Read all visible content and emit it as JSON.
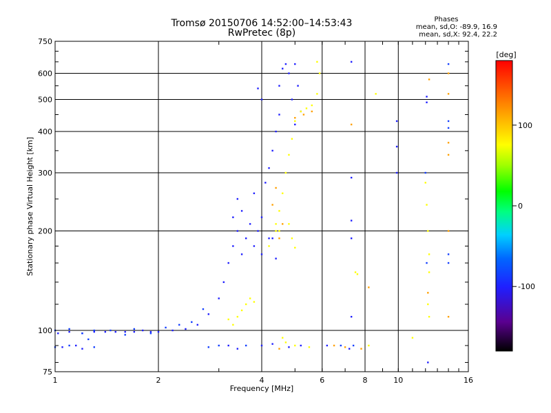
{
  "chart_data": {
    "type": "scatter",
    "title": "Tromsø 20150706 14:52:00–14:53:43",
    "subtitle": "RwPretec (8p)",
    "xlabel": "Frequency [MHz]",
    "ylabel": "Stationary phase Virtual Height [km]",
    "x_scale": "log",
    "y_scale": "log",
    "xlim": [
      1,
      16
    ],
    "ylim": [
      75,
      750
    ],
    "x_ticks": [
      1,
      2,
      4,
      6,
      8,
      10,
      16
    ],
    "x_tick_labels": [
      "1",
      "2",
      "4",
      "6",
      "8",
      "10",
      "16"
    ],
    "y_ticks": [
      75,
      100,
      200,
      300,
      400,
      500,
      600,
      750
    ],
    "y_tick_labels": [
      "75",
      "100",
      "200",
      "300",
      "400",
      "500",
      "600",
      "750"
    ],
    "grid": true,
    "phases_info": {
      "heading": "Phases",
      "line1": "mean, sd,O: -89.9, 16.9",
      "line2": "mean, sd,X:  92.4, 22.2"
    },
    "colorbar": {
      "label": "[deg]",
      "range": [
        -180,
        180
      ],
      "ticks": [
        100,
        0,
        -100
      ],
      "tick_labels": [
        "100",
        "0",
        "-100"
      ]
    },
    "series": [
      {
        "color_phase": -100,
        "points": [
          [
            1.02,
            98
          ],
          [
            1.1,
            99
          ],
          [
            1.2,
            98
          ],
          [
            1.3,
            99
          ],
          [
            1.4,
            99
          ],
          [
            1.5,
            99
          ],
          [
            1.6,
            99
          ],
          [
            1.7,
            99
          ],
          [
            1.8,
            100
          ],
          [
            1.9,
            99
          ],
          [
            2.0,
            99
          ],
          [
            2.2,
            100
          ],
          [
            2.4,
            101
          ],
          [
            2.6,
            104
          ],
          [
            2.8,
            112
          ],
          [
            3.0,
            125
          ],
          [
            3.1,
            140
          ],
          [
            3.2,
            160
          ],
          [
            3.3,
            180
          ],
          [
            3.3,
            220
          ],
          [
            3.4,
            250
          ],
          [
            3.4,
            200
          ],
          [
            3.5,
            170
          ],
          [
            3.5,
            230
          ],
          [
            3.6,
            190
          ],
          [
            3.7,
            210
          ],
          [
            3.8,
            180
          ],
          [
            3.8,
            260
          ],
          [
            3.9,
            200
          ],
          [
            4.0,
            220
          ],
          [
            4.0,
            170
          ],
          [
            4.1,
            280
          ],
          [
            4.2,
            310
          ],
          [
            4.2,
            190
          ],
          [
            4.3,
            350
          ],
          [
            4.3,
            190
          ],
          [
            4.4,
            400
          ],
          [
            4.4,
            165
          ],
          [
            4.5,
            450
          ],
          [
            4.5,
            550
          ],
          [
            4.6,
            620
          ],
          [
            4.7,
            640
          ],
          [
            4.8,
            600
          ],
          [
            4.9,
            500
          ],
          [
            5.0,
            640
          ],
          [
            5.1,
            550
          ],
          [
            5.2,
            460
          ],
          [
            5.0,
            420
          ],
          [
            3.9,
            540
          ],
          [
            4.0,
            500
          ],
          [
            7.3,
            650
          ],
          [
            7.3,
            290
          ],
          [
            7.3,
            215
          ],
          [
            7.3,
            190
          ],
          [
            7.3,
            110
          ],
          [
            9.9,
            430
          ],
          [
            9.9,
            360
          ],
          [
            9.9,
            300
          ],
          [
            12.1,
            510
          ],
          [
            12.1,
            490
          ],
          [
            12.2,
            80
          ],
          [
            1.05,
            89
          ],
          [
            1.15,
            90
          ],
          [
            1.2,
            88
          ],
          [
            3.2,
            90
          ],
          [
            3.4,
            88
          ],
          [
            4.0,
            90
          ],
          [
            4.3,
            91
          ],
          [
            4.8,
            89
          ],
          [
            5.2,
            90
          ],
          [
            6.2,
            90
          ],
          [
            7.2,
            88
          ]
        ]
      },
      {
        "color_phase": -85,
        "points": [
          [
            1.0,
            100
          ],
          [
            1.1,
            101
          ],
          [
            1.2,
            98
          ],
          [
            1.25,
            94
          ],
          [
            1.3,
            100
          ],
          [
            1.45,
            100
          ],
          [
            1.6,
            97
          ],
          [
            1.7,
            101
          ],
          [
            1.9,
            98
          ],
          [
            2.1,
            102
          ],
          [
            2.3,
            104
          ],
          [
            2.5,
            106
          ],
          [
            2.7,
            116
          ],
          [
            1.0,
            89
          ],
          [
            1.1,
            90
          ],
          [
            1.3,
            89
          ],
          [
            2.8,
            89
          ],
          [
            3.0,
            90
          ],
          [
            3.6,
            90
          ],
          [
            6.8,
            90
          ],
          [
            7.4,
            90
          ],
          [
            14.0,
            640
          ],
          [
            14.0,
            430
          ],
          [
            14.0,
            410
          ],
          [
            14.0,
            170
          ],
          [
            14.0,
            160
          ],
          [
            12.1,
            160
          ],
          [
            12.0,
            300
          ]
        ]
      },
      {
        "color_phase": 95,
        "points": [
          [
            3.2,
            108
          ],
          [
            3.3,
            104
          ],
          [
            3.4,
            110
          ],
          [
            3.5,
            115
          ],
          [
            3.6,
            120
          ],
          [
            3.7,
            125
          ],
          [
            3.8,
            122
          ],
          [
            4.2,
            180
          ],
          [
            4.4,
            200
          ],
          [
            4.5,
            230
          ],
          [
            4.6,
            260
          ],
          [
            4.7,
            300
          ],
          [
            4.8,
            340
          ],
          [
            4.9,
            380
          ],
          [
            5.0,
            430
          ],
          [
            5.2,
            460
          ],
          [
            5.4,
            470
          ],
          [
            5.6,
            480
          ],
          [
            5.8,
            520
          ],
          [
            5.9,
            600
          ],
          [
            5.8,
            650
          ],
          [
            4.9,
            190
          ],
          [
            5.0,
            178
          ],
          [
            4.8,
            210
          ],
          [
            4.5,
            200
          ],
          [
            4.4,
            210
          ],
          [
            4.6,
            95
          ],
          [
            4.7,
            92
          ],
          [
            5.0,
            90
          ],
          [
            5.5,
            89
          ],
          [
            8.6,
            520
          ],
          [
            8.2,
            90
          ],
          [
            12.0,
            280
          ],
          [
            12.1,
            240
          ],
          [
            12.2,
            200
          ],
          [
            12.3,
            170
          ],
          [
            12.3,
            150
          ],
          [
            12.2,
            120
          ],
          [
            12.3,
            110
          ],
          [
            11.0,
            95
          ],
          [
            7.5,
            150
          ],
          [
            7.6,
            148
          ]
        ]
      },
      {
        "color_phase": 140,
        "points": [
          [
            4.3,
            240
          ],
          [
            4.4,
            270
          ],
          [
            4.5,
            190
          ],
          [
            4.6,
            210
          ],
          [
            5.0,
            440
          ],
          [
            5.3,
            450
          ],
          [
            5.6,
            460
          ],
          [
            6.5,
            90
          ],
          [
            7.0,
            89
          ],
          [
            7.3,
            420
          ],
          [
            8.2,
            135
          ],
          [
            14.0,
            200
          ],
          [
            14.0,
            370
          ],
          [
            14.0,
            340
          ],
          [
            14.0,
            110
          ],
          [
            12.3,
            575
          ],
          [
            14.0,
            600
          ],
          [
            14.0,
            520
          ],
          [
            12.2,
            130
          ],
          [
            7.8,
            88
          ],
          [
            4.5,
            88
          ]
        ]
      }
    ]
  }
}
